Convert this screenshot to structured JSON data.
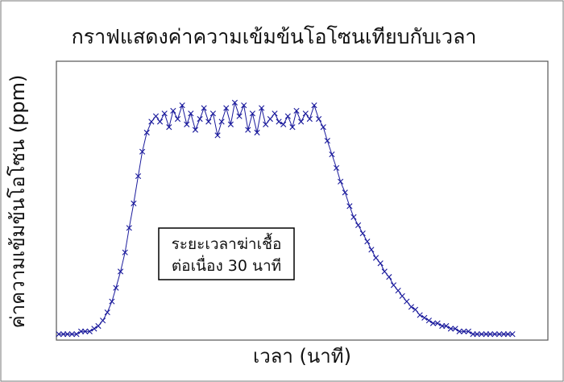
{
  "chart_data": {
    "type": "line",
    "title": "กราฟแสดงค่าความเข้มข้นโอโซนเทียบกับเวลา",
    "xlabel": "เวลา (นาที)",
    "ylabel": "ค่าความเข้มข้นโอโซน (ppm)",
    "grid": false,
    "legend": "none",
    "marker": "x",
    "x_ticks_shown": false,
    "y_ticks_shown": false,
    "xlim": [
      0,
      100
    ],
    "ylim": [
      0,
      1
    ],
    "series_color": "#1a1a9c",
    "series": [
      {
        "x": [
          0,
          1.0,
          1.9,
          2.9,
          3.9,
          4.9,
          5.8,
          6.8,
          7.8,
          8.7,
          9.7,
          10.7,
          11.7,
          12.6,
          13.6,
          14.6,
          15.5,
          16.5,
          17.5,
          18.4,
          19.4,
          20.4,
          21.4,
          22.3,
          23.3,
          24.3,
          25.2,
          26.2,
          27.2,
          28.2,
          29.1,
          30.1,
          31.1,
          32.0,
          33.0,
          34.0,
          35.0,
          35.9,
          36.9,
          37.9,
          38.8,
          39.8,
          40.8,
          41.7,
          42.7,
          43.7,
          44.7,
          45.6,
          46.6,
          47.6,
          48.5,
          49.5,
          50.5,
          51.5,
          52.4,
          53.4,
          54.4,
          55.3,
          56.3,
          57.3,
          58.3,
          59.2,
          60.2,
          61.2,
          62.1,
          63.1,
          64.1,
          65.0,
          66.0,
          67.0,
          68.0,
          68.9,
          69.9,
          70.9,
          71.8,
          72.8,
          73.8,
          74.8,
          75.7,
          76.7,
          77.7,
          78.6,
          79.6,
          80.6,
          81.6,
          82.5,
          83.5,
          84.5,
          85.4,
          86.4,
          87.4,
          88.3,
          89.3,
          90.3,
          91.3,
          92.2,
          93.2,
          94.2,
          95.1,
          96.1,
          97.1,
          98.1,
          99.0,
          100
        ],
        "values": [
          0.01,
          0.01,
          0.01,
          0.01,
          0.01,
          0.02,
          0.02,
          0.02,
          0.03,
          0.04,
          0.06,
          0.09,
          0.13,
          0.18,
          0.24,
          0.31,
          0.4,
          0.49,
          0.59,
          0.68,
          0.75,
          0.79,
          0.81,
          0.79,
          0.82,
          0.77,
          0.83,
          0.8,
          0.85,
          0.78,
          0.82,
          0.76,
          0.8,
          0.84,
          0.79,
          0.82,
          0.74,
          0.79,
          0.84,
          0.78,
          0.86,
          0.81,
          0.85,
          0.76,
          0.82,
          0.75,
          0.84,
          0.78,
          0.8,
          0.82,
          0.79,
          0.78,
          0.81,
          0.77,
          0.83,
          0.79,
          0.82,
          0.8,
          0.85,
          0.8,
          0.77,
          0.72,
          0.67,
          0.62,
          0.57,
          0.53,
          0.48,
          0.44,
          0.41,
          0.38,
          0.35,
          0.32,
          0.29,
          0.27,
          0.24,
          0.22,
          0.19,
          0.17,
          0.15,
          0.13,
          0.11,
          0.1,
          0.08,
          0.07,
          0.06,
          0.05,
          0.05,
          0.04,
          0.04,
          0.03,
          0.03,
          0.02,
          0.02,
          0.02,
          0.01,
          0.01,
          0.01,
          0.01,
          0.01,
          0.01,
          0.01,
          0.01,
          0.01,
          0.01
        ]
      }
    ],
    "annotation": {
      "lines": [
        "ระยะเวลาฆ่าเชื้อ",
        "ต่อเนื่อง 30 นาที"
      ]
    }
  }
}
